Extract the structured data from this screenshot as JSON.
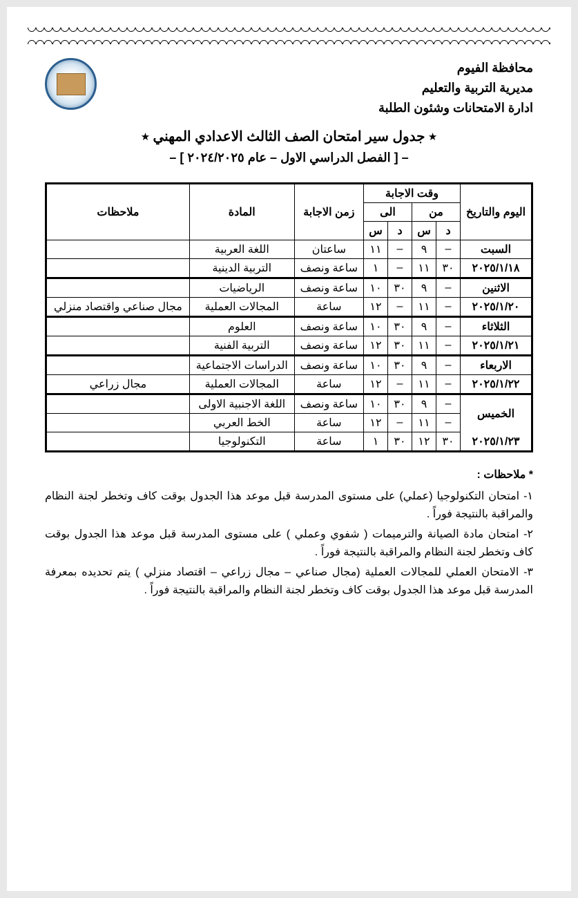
{
  "header": {
    "line1": "محافظة الفيوم",
    "line2": "مديرية التربية والتعليم",
    "line3": "ادارة الامتحانات وشئون الطلبة"
  },
  "title": {
    "main": "٭ جدول سير امتحان الصف الثالث الاعدادي المهني ٭",
    "sub": "– [ الفصل الدراسي الاول – عام ٢٠٢٤/٢٠٢٥ ] –"
  },
  "table": {
    "headers": {
      "day_date": "اليوم والتاريخ",
      "time": "وقت الاجابة",
      "from": "من",
      "to": "الى",
      "d": "د",
      "s": "س",
      "duration": "زمن الاجابة",
      "subject": "المادة",
      "notes": "ملاحظات"
    },
    "rows": [
      {
        "day": "السبت",
        "date": "٢٠٢٥/١/١٨",
        "from_d": "–",
        "from_s": "٩",
        "to_d": "–",
        "to_s": "١١",
        "duration": "ساعتان",
        "subject": "اللغة العربية",
        "notes": ""
      },
      {
        "day": "",
        "date": "",
        "from_d": "٣٠",
        "from_s": "١١",
        "to_d": "–",
        "to_s": "١",
        "duration": "ساعة ونصف",
        "subject": "التربية الدينية",
        "notes": ""
      },
      {
        "day": "الاثنين",
        "date": "٢٠٢٥/١/٢٠",
        "from_d": "–",
        "from_s": "٩",
        "to_d": "٣٠",
        "to_s": "١٠",
        "duration": "ساعة ونصف",
        "subject": "الرياضيات",
        "notes": ""
      },
      {
        "day": "",
        "date": "",
        "from_d": "–",
        "from_s": "١١",
        "to_d": "–",
        "to_s": "١٢",
        "duration": "ساعة",
        "subject": "المجالات العملية",
        "notes": "مجال صناعي واقتصاد منزلي"
      },
      {
        "day": "الثلاثاء",
        "date": "٢٠٢٥/١/٢١",
        "from_d": "–",
        "from_s": "٩",
        "to_d": "٣٠",
        "to_s": "١٠",
        "duration": "ساعة ونصف",
        "subject": "العلوم",
        "notes": ""
      },
      {
        "day": "",
        "date": "",
        "from_d": "–",
        "from_s": "١١",
        "to_d": "٣٠",
        "to_s": "١٢",
        "duration": "ساعة ونصف",
        "subject": "التربية الفنية",
        "notes": ""
      },
      {
        "day": "الاربعاء",
        "date": "٢٠٢٥/١/٢٢",
        "from_d": "–",
        "from_s": "٩",
        "to_d": "٣٠",
        "to_s": "١٠",
        "duration": "ساعة ونصف",
        "subject": "الدراسات الاجتماعية",
        "notes": ""
      },
      {
        "day": "",
        "date": "",
        "from_d": "–",
        "from_s": "١١",
        "to_d": "–",
        "to_s": "١٢",
        "duration": "ساعة",
        "subject": "المجالات العملية",
        "notes": "مجال زراعي"
      },
      {
        "day": "الخميس",
        "date": "٢٠٢٥/١/٢٣",
        "from_d": "–",
        "from_s": "٩",
        "to_d": "٣٠",
        "to_s": "١٠",
        "duration": "ساعة ونصف",
        "subject": "اللغة الاجنبية الاولى",
        "notes": ""
      },
      {
        "day": "",
        "date": "",
        "from_d": "–",
        "from_s": "١١",
        "to_d": "–",
        "to_s": "١٢",
        "duration": "ساعة",
        "subject": "الخط العربي",
        "notes": ""
      },
      {
        "day": "",
        "date": "",
        "from_d": "٣٠",
        "from_s": "١٢",
        "to_d": "٣٠",
        "to_s": "١",
        "duration": "ساعة",
        "subject": "التكنولوجيا",
        "notes": ""
      }
    ]
  },
  "notes": {
    "title": "* ملاحظات :",
    "items": [
      "١- امتحان التكنولوجيا (عملي) على مستوى المدرسة قبل موعد هذا الجدول بوقت كاف وتخطر لجنة النظام والمراقبة بالنتيجة فوراً .",
      "٢- امتحان مادة الصيانة والترميمات ( شفوي وعملي ) على مستوى المدرسة قبل موعد هذا الجدول بوقت كاف وتخطر لجنة النظام والمراقبة بالنتيجة فوراً .",
      "٣- الامتحان العملي للمجالات العملية (مجال صناعي – مجال زراعي – اقتصاد منزلي ) يتم تحديده بمعرفة المدرسة قبل موعد هذا الجدول بوقت كاف وتخطر لجنة النظام والمراقبة بالنتيجة فوراً ."
    ]
  }
}
